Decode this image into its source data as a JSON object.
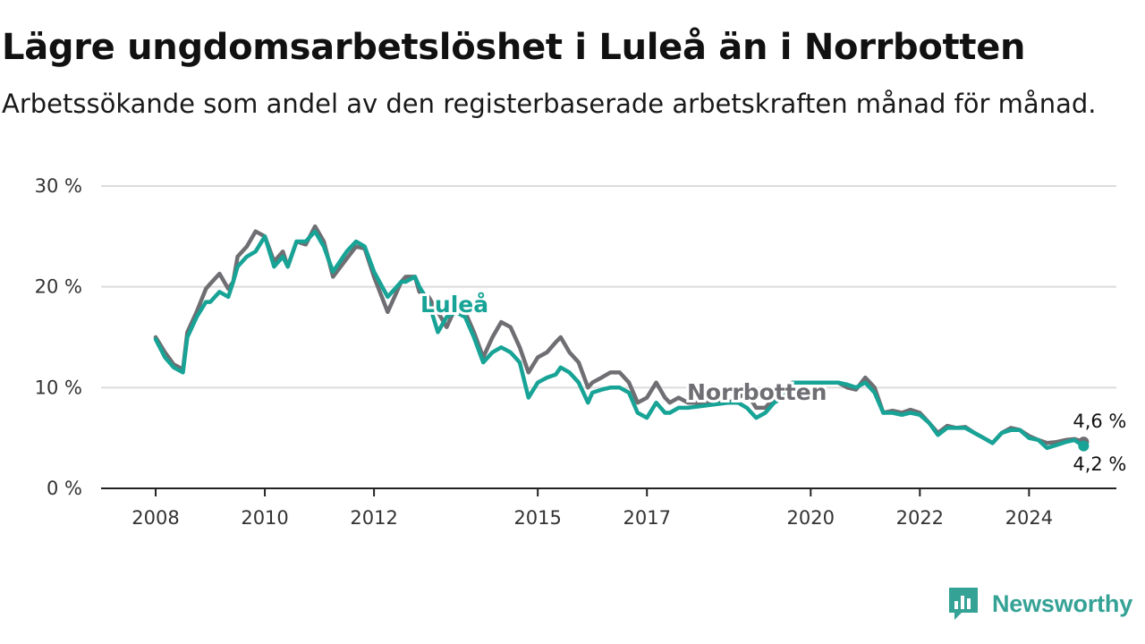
{
  "header": {
    "title": "Lägre ungdomsarbetslöshet i Luleå än i Norrbotten",
    "subtitle": "Arbetssökande som andel av den registerbaserade arbetskraften månad för månad."
  },
  "brand": {
    "name": "Newsworthy",
    "color": "#35a296"
  },
  "chart_data": {
    "type": "line",
    "xlabel": "",
    "ylabel": "",
    "ylim": [
      0,
      30
    ],
    "yticks": [
      {
        "value": 0,
        "label": "0 %"
      },
      {
        "value": 10,
        "label": "10 %"
      },
      {
        "value": 20,
        "label": "20 %"
      },
      {
        "value": 30,
        "label": "30 %"
      }
    ],
    "xticks": [
      {
        "value": 2008,
        "label": "2008"
      },
      {
        "value": 2010,
        "label": "2010"
      },
      {
        "value": 2012,
        "label": "2012"
      },
      {
        "value": 2015,
        "label": "2015"
      },
      {
        "value": 2017,
        "label": "2017"
      },
      {
        "value": 2020,
        "label": "2020"
      },
      {
        "value": 2022,
        "label": "2022"
      },
      {
        "value": 2024,
        "label": "2024"
      }
    ],
    "grid": true,
    "legend": "direct labels on lines",
    "series": [
      {
        "name": "Norrbotten",
        "color": "#6e6e73",
        "end_label": "4,6 %",
        "x": [
          2008.0,
          2008.17,
          2008.33,
          2008.5,
          2008.58,
          2008.75,
          2008.92,
          2009.0,
          2009.17,
          2009.33,
          2009.42,
          2009.5,
          2009.67,
          2009.83,
          2010.0,
          2010.17,
          2010.33,
          2010.42,
          2010.58,
          2010.75,
          2010.92,
          2011.08,
          2011.25,
          2011.5,
          2011.67,
          2011.83,
          2012.0,
          2012.25,
          2012.5,
          2012.58,
          2012.75,
          2012.83,
          2013.0,
          2013.17,
          2013.33,
          2013.5,
          2013.67,
          2013.83,
          2014.0,
          2014.17,
          2014.33,
          2014.5,
          2014.67,
          2014.83,
          2015.0,
          2015.17,
          2015.33,
          2015.42,
          2015.58,
          2015.75,
          2015.92,
          2016.0,
          2016.17,
          2016.33,
          2016.5,
          2016.67,
          2016.83,
          2017.0,
          2017.17,
          2017.33,
          2017.42,
          2017.58,
          2017.75,
          2018.5,
          2018.67,
          2018.83,
          2019.0,
          2019.17,
          2019.33,
          2019.5,
          2019.67,
          2020.5,
          2020.67,
          2020.83,
          2021.0,
          2021.17,
          2021.33,
          2021.5,
          2021.67,
          2021.83,
          2022.0,
          2022.17,
          2022.33,
          2022.5,
          2022.67,
          2022.83,
          2023.0,
          2023.17,
          2023.33,
          2023.5,
          2023.67,
          2023.83,
          2024.0,
          2024.17,
          2024.33,
          2024.5,
          2024.67,
          2024.83,
          2025.0
        ],
        "y": [
          15.0,
          13.5,
          12.3,
          11.8,
          15.5,
          17.5,
          19.8,
          20.3,
          21.3,
          19.8,
          20.5,
          23.0,
          24.0,
          25.5,
          25.0,
          22.5,
          23.5,
          22.0,
          24.5,
          24.2,
          26.0,
          24.5,
          21.0,
          22.8,
          24.0,
          23.8,
          21.0,
          17.5,
          20.5,
          21.0,
          21.0,
          19.5,
          19.0,
          17.5,
          16.0,
          18.0,
          17.5,
          15.5,
          13.0,
          15.0,
          16.5,
          16.0,
          14.0,
          11.5,
          13.0,
          13.5,
          14.5,
          15.0,
          13.5,
          12.5,
          10.0,
          10.5,
          11.0,
          11.5,
          11.5,
          10.5,
          8.5,
          9.0,
          10.5,
          9.0,
          8.5,
          9.0,
          8.5,
          8.5,
          9.0,
          9.5,
          8.0,
          8.0,
          9.0,
          9.5,
          10.5,
          10.5,
          10.0,
          9.8,
          11.0,
          10.0,
          7.5,
          7.7,
          7.5,
          7.8,
          7.5,
          6.5,
          5.5,
          6.2,
          6.0,
          6.1,
          5.5,
          5.0,
          4.5,
          5.5,
          6.0,
          5.8,
          5.2,
          4.8,
          4.5,
          4.6,
          4.8,
          4.9,
          4.6
        ]
      },
      {
        "name": "Luleå",
        "color": "#17a396",
        "end_label": "4,2 %",
        "x": [
          2008.0,
          2008.17,
          2008.33,
          2008.5,
          2008.58,
          2008.75,
          2008.92,
          2009.0,
          2009.17,
          2009.33,
          2009.42,
          2009.5,
          2009.67,
          2009.83,
          2010.0,
          2010.17,
          2010.33,
          2010.42,
          2010.58,
          2010.75,
          2010.92,
          2011.08,
          2011.25,
          2011.5,
          2011.67,
          2011.83,
          2012.0,
          2012.25,
          2012.5,
          2012.58,
          2012.75,
          2012.83,
          2013.0,
          2013.17,
          2013.33,
          2013.5,
          2013.67,
          2013.83,
          2014.0,
          2014.17,
          2014.33,
          2014.5,
          2014.67,
          2014.83,
          2015.0,
          2015.17,
          2015.33,
          2015.42,
          2015.58,
          2015.75,
          2015.92,
          2016.0,
          2016.17,
          2016.33,
          2016.5,
          2016.67,
          2016.83,
          2017.0,
          2017.17,
          2017.33,
          2017.42,
          2017.58,
          2017.75,
          2018.5,
          2018.67,
          2018.83,
          2019.0,
          2019.17,
          2019.33,
          2019.5,
          2019.67,
          2020.5,
          2020.67,
          2020.83,
          2021.0,
          2021.17,
          2021.33,
          2021.5,
          2021.67,
          2021.83,
          2022.0,
          2022.17,
          2022.33,
          2022.5,
          2022.67,
          2022.83,
          2023.0,
          2023.17,
          2023.33,
          2023.5,
          2023.67,
          2023.83,
          2024.0,
          2024.17,
          2024.33,
          2024.5,
          2024.67,
          2024.83,
          2025.0
        ],
        "y": [
          14.8,
          13.0,
          12.0,
          11.5,
          15.0,
          17.0,
          18.5,
          18.5,
          19.5,
          19.0,
          20.5,
          22.0,
          23.0,
          23.5,
          25.0,
          22.0,
          23.0,
          22.0,
          24.5,
          24.5,
          25.5,
          24.0,
          21.5,
          23.5,
          24.5,
          24.0,
          21.5,
          19.0,
          20.5,
          20.5,
          21.0,
          20.0,
          18.5,
          15.5,
          17.0,
          17.5,
          17.0,
          15.0,
          12.5,
          13.5,
          14.0,
          13.5,
          12.5,
          9.0,
          10.5,
          11.0,
          11.3,
          12.0,
          11.5,
          10.5,
          8.5,
          9.5,
          9.8,
          10.0,
          10.0,
          9.5,
          7.5,
          7.0,
          8.5,
          7.5,
          7.5,
          8.0,
          8.0,
          8.5,
          8.5,
          8.0,
          7.0,
          7.5,
          8.5,
          9.0,
          10.5,
          10.5,
          10.3,
          10.0,
          10.5,
          9.5,
          7.5,
          7.5,
          7.3,
          7.5,
          7.3,
          6.5,
          5.3,
          6.0,
          6.0,
          6.0,
          5.5,
          5.0,
          4.5,
          5.5,
          5.8,
          5.8,
          5.0,
          4.8,
          4.0,
          4.3,
          4.6,
          4.8,
          4.2
        ]
      }
    ]
  }
}
